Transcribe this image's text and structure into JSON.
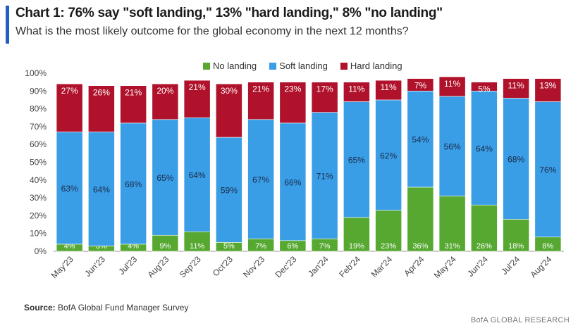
{
  "header": {
    "title": "Chart 1: 76% say \"soft landing,\" 13% \"hard landing,\" 8% \"no landing\"",
    "subtitle": "What is the most likely outcome for the global economy in the next 12 months?"
  },
  "footer": {
    "source_label": "Source:",
    "source_text": "BofA Global Fund Manager Survey",
    "brand": "BofA GLOBAL RESEARCH"
  },
  "colors": {
    "accent": "#1f5fbf",
    "no_landing": "#56a830",
    "soft_landing": "#3a9ee6",
    "hard_landing": "#b0122b",
    "grid": "#d0d0d0",
    "axis_text": "#444444"
  },
  "chart_data": {
    "type": "bar",
    "stacked": true,
    "categories": [
      "May'23",
      "Jun'23",
      "Jul'23",
      "Aug'23",
      "Sep'23",
      "Oct'23",
      "Nov'23",
      "Dec'23",
      "Jan'24",
      "Feb'24",
      "Mar'24",
      "Apr'24",
      "May'24",
      "Jun'24",
      "Jul'24",
      "Aug'24"
    ],
    "series": [
      {
        "name": "No landing",
        "color": "#56a830",
        "values": [
          4,
          3,
          4,
          9,
          11,
          5,
          7,
          6,
          7,
          19,
          23,
          36,
          31,
          26,
          18,
          8
        ]
      },
      {
        "name": "Soft landing",
        "color": "#3a9ee6",
        "values": [
          63,
          64,
          68,
          65,
          64,
          59,
          67,
          66,
          71,
          65,
          62,
          54,
          56,
          64,
          68,
          76
        ]
      },
      {
        "name": "Hard landing",
        "color": "#b0122b",
        "values": [
          27,
          26,
          21,
          20,
          21,
          30,
          21,
          23,
          17,
          11,
          11,
          7,
          11,
          5,
          11,
          13
        ]
      }
    ],
    "value_suffix": "%",
    "ylim": [
      0,
      100
    ],
    "yticks": [
      "0%",
      "10%",
      "20%",
      "30%",
      "40%",
      "50%",
      "60%",
      "70%",
      "80%",
      "90%",
      "100%"
    ],
    "legend_position": "top-center",
    "grid": false
  }
}
